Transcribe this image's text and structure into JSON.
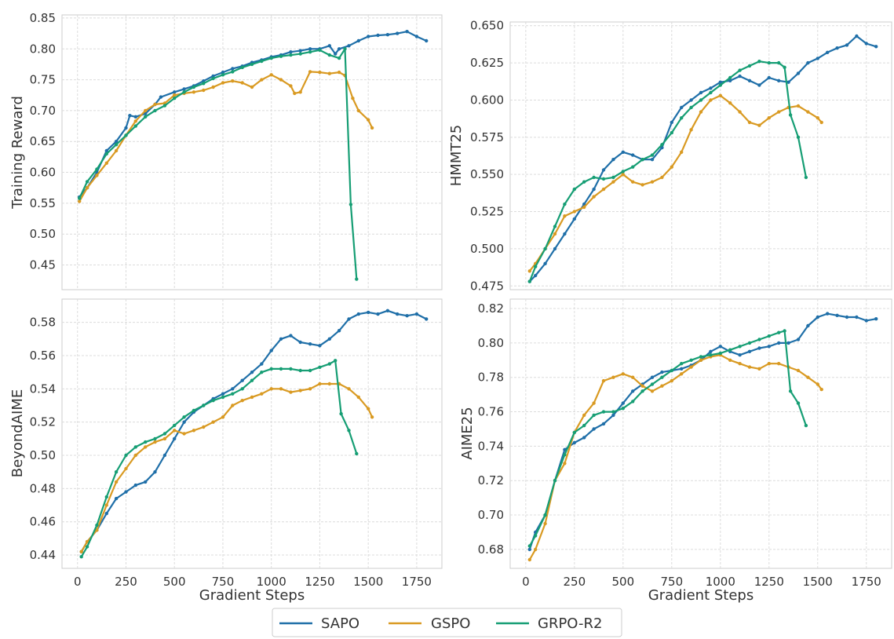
{
  "figure": {
    "legend": {
      "placement": "bottom-center",
      "entries": [
        {
          "name": "SAPO",
          "color": "#1f6fa8"
        },
        {
          "name": "GSPO",
          "color": "#d99a22"
        },
        {
          "name": "GRPO-R2",
          "color": "#169e74"
        }
      ]
    }
  },
  "chart_data": [
    {
      "type": "line",
      "id": "training-reward",
      "title": "",
      "xlabel": "",
      "ylabel": "Training Reward",
      "xlim": [
        -80,
        1880
      ],
      "ylim": [
        0.41,
        0.855
      ],
      "xticks": [
        0,
        250,
        500,
        750,
        1000,
        1250,
        1500,
        1750
      ],
      "yticks": [
        0.45,
        0.5,
        0.55,
        0.6,
        0.65,
        0.7,
        0.75,
        0.8,
        0.85
      ],
      "ytick_labels": [
        "0.45",
        "0.50",
        "0.55",
        "0.60",
        "0.65",
        "0.70",
        "0.75",
        "0.80",
        "0.85"
      ],
      "grid": true,
      "series": [
        {
          "name": "SAPO",
          "color": "#1f6fa8",
          "x": [
            10,
            50,
            100,
            150,
            200,
            250,
            270,
            300,
            350,
            400,
            430,
            500,
            550,
            600,
            650,
            700,
            750,
            800,
            850,
            900,
            950,
            1000,
            1050,
            1100,
            1150,
            1200,
            1250,
            1300,
            1330,
            1350,
            1400,
            1450,
            1500,
            1550,
            1600,
            1650,
            1700,
            1750,
            1800
          ],
          "y": [
            0.56,
            0.575,
            0.6,
            0.635,
            0.65,
            0.672,
            0.692,
            0.69,
            0.695,
            0.71,
            0.722,
            0.73,
            0.735,
            0.74,
            0.748,
            0.756,
            0.762,
            0.768,
            0.772,
            0.778,
            0.782,
            0.787,
            0.79,
            0.795,
            0.797,
            0.8,
            0.8,
            0.805,
            0.792,
            0.8,
            0.805,
            0.813,
            0.82,
            0.822,
            0.823,
            0.825,
            0.828,
            0.82,
            0.813
          ]
        },
        {
          "name": "GSPO",
          "color": "#d99a22",
          "x": [
            10,
            50,
            100,
            150,
            200,
            250,
            300,
            350,
            400,
            450,
            500,
            550,
            600,
            650,
            700,
            750,
            800,
            850,
            900,
            950,
            1000,
            1050,
            1100,
            1120,
            1150,
            1200,
            1250,
            1300,
            1350,
            1380,
            1420,
            1450,
            1500,
            1520
          ],
          "y": [
            0.553,
            0.575,
            0.595,
            0.615,
            0.635,
            0.66,
            0.683,
            0.7,
            0.71,
            0.712,
            0.725,
            0.728,
            0.73,
            0.733,
            0.738,
            0.745,
            0.748,
            0.745,
            0.738,
            0.75,
            0.758,
            0.75,
            0.74,
            0.728,
            0.73,
            0.763,
            0.762,
            0.76,
            0.762,
            0.757,
            0.72,
            0.7,
            0.685,
            0.672
          ]
        },
        {
          "name": "GRPO-R2",
          "color": "#169e74",
          "x": [
            10,
            50,
            100,
            150,
            200,
            250,
            300,
            350,
            400,
            450,
            500,
            550,
            600,
            650,
            700,
            750,
            800,
            850,
            900,
            950,
            1000,
            1050,
            1100,
            1150,
            1200,
            1250,
            1300,
            1350,
            1380,
            1410,
            1440
          ],
          "y": [
            0.558,
            0.585,
            0.605,
            0.63,
            0.645,
            0.66,
            0.675,
            0.69,
            0.7,
            0.708,
            0.72,
            0.73,
            0.738,
            0.744,
            0.752,
            0.758,
            0.763,
            0.77,
            0.775,
            0.78,
            0.785,
            0.788,
            0.79,
            0.792,
            0.795,
            0.798,
            0.79,
            0.785,
            0.8,
            0.548,
            0.427
          ]
        }
      ]
    },
    {
      "type": "line",
      "id": "hmmt25",
      "title": "",
      "xlabel": "",
      "ylabel": "HMMT25",
      "xlim": [
        -80,
        1880
      ],
      "ylim": [
        0.4725,
        0.6525
      ],
      "xticks": [
        0,
        250,
        500,
        750,
        1000,
        1250,
        1500,
        1750
      ],
      "yticks": [
        0.475,
        0.5,
        0.525,
        0.55,
        0.575,
        0.6,
        0.625,
        0.65
      ],
      "ytick_labels": [
        "0.475",
        "0.500",
        "0.525",
        "0.550",
        "0.575",
        "0.600",
        "0.625",
        "0.650"
      ],
      "grid": true,
      "series": [
        {
          "name": "SAPO",
          "color": "#1f6fa8",
          "x": [
            20,
            50,
            100,
            150,
            200,
            250,
            300,
            350,
            400,
            450,
            500,
            550,
            600,
            650,
            700,
            750,
            800,
            850,
            900,
            950,
            1000,
            1050,
            1100,
            1150,
            1200,
            1250,
            1300,
            1350,
            1400,
            1450,
            1500,
            1550,
            1600,
            1650,
            1700,
            1750,
            1800
          ],
          "y": [
            0.478,
            0.482,
            0.49,
            0.5,
            0.51,
            0.52,
            0.53,
            0.54,
            0.553,
            0.56,
            0.565,
            0.563,
            0.56,
            0.56,
            0.568,
            0.585,
            0.595,
            0.6,
            0.605,
            0.608,
            0.612,
            0.613,
            0.616,
            0.613,
            0.61,
            0.615,
            0.613,
            0.612,
            0.618,
            0.625,
            0.628,
            0.632,
            0.635,
            0.637,
            0.643,
            0.638,
            0.636
          ]
        },
        {
          "name": "GSPO",
          "color": "#d99a22",
          "x": [
            20,
            50,
            100,
            150,
            200,
            250,
            300,
            350,
            400,
            450,
            500,
            550,
            600,
            650,
            700,
            750,
            800,
            850,
            900,
            950,
            1000,
            1050,
            1100,
            1150,
            1200,
            1250,
            1300,
            1350,
            1400,
            1450,
            1500,
            1520
          ],
          "y": [
            0.485,
            0.49,
            0.5,
            0.51,
            0.522,
            0.525,
            0.528,
            0.535,
            0.54,
            0.545,
            0.55,
            0.545,
            0.543,
            0.545,
            0.548,
            0.555,
            0.565,
            0.58,
            0.592,
            0.6,
            0.603,
            0.598,
            0.592,
            0.585,
            0.583,
            0.588,
            0.592,
            0.595,
            0.596,
            0.592,
            0.588,
            0.585
          ]
        },
        {
          "name": "GRPO-R2",
          "color": "#169e74",
          "x": [
            20,
            50,
            100,
            150,
            200,
            250,
            300,
            350,
            400,
            450,
            500,
            550,
            600,
            650,
            700,
            750,
            800,
            850,
            900,
            950,
            1000,
            1050,
            1100,
            1150,
            1200,
            1250,
            1300,
            1330,
            1360,
            1400,
            1440
          ],
          "y": [
            0.478,
            0.488,
            0.5,
            0.515,
            0.53,
            0.54,
            0.545,
            0.548,
            0.547,
            0.548,
            0.552,
            0.555,
            0.56,
            0.563,
            0.57,
            0.578,
            0.588,
            0.595,
            0.6,
            0.605,
            0.61,
            0.615,
            0.62,
            0.623,
            0.626,
            0.625,
            0.625,
            0.622,
            0.59,
            0.575,
            0.548
          ]
        }
      ]
    },
    {
      "type": "line",
      "id": "beyondaime",
      "title": "",
      "xlabel": "Gradient Steps",
      "ylabel": "BeyondAIME",
      "xlim": [
        -80,
        1880
      ],
      "ylim": [
        0.432,
        0.594
      ],
      "xticks": [
        0,
        250,
        500,
        750,
        1000,
        1250,
        1500,
        1750
      ],
      "yticks": [
        0.44,
        0.46,
        0.48,
        0.5,
        0.52,
        0.54,
        0.56,
        0.58
      ],
      "ytick_labels": [
        "0.44",
        "0.46",
        "0.48",
        "0.50",
        "0.52",
        "0.54",
        "0.56",
        "0.58"
      ],
      "grid": true,
      "series": [
        {
          "name": "SAPO",
          "color": "#1f6fa8",
          "x": [
            20,
            50,
            100,
            150,
            200,
            250,
            300,
            350,
            400,
            450,
            500,
            550,
            600,
            650,
            700,
            750,
            800,
            850,
            900,
            950,
            1000,
            1050,
            1100,
            1150,
            1200,
            1250,
            1300,
            1350,
            1400,
            1450,
            1500,
            1550,
            1600,
            1650,
            1700,
            1750,
            1800
          ],
          "y": [
            0.442,
            0.448,
            0.455,
            0.465,
            0.474,
            0.478,
            0.482,
            0.484,
            0.49,
            0.5,
            0.51,
            0.52,
            0.526,
            0.53,
            0.534,
            0.537,
            0.54,
            0.545,
            0.55,
            0.555,
            0.563,
            0.57,
            0.572,
            0.568,
            0.567,
            0.566,
            0.57,
            0.575,
            0.582,
            0.585,
            0.586,
            0.585,
            0.587,
            0.585,
            0.584,
            0.585,
            0.582
          ]
        },
        {
          "name": "GSPO",
          "color": "#d99a22",
          "x": [
            20,
            50,
            100,
            150,
            200,
            250,
            300,
            350,
            400,
            450,
            500,
            550,
            600,
            650,
            700,
            750,
            800,
            850,
            900,
            950,
            1000,
            1050,
            1100,
            1150,
            1200,
            1250,
            1300,
            1350,
            1400,
            1450,
            1500,
            1520
          ],
          "y": [
            0.442,
            0.448,
            0.455,
            0.47,
            0.484,
            0.492,
            0.5,
            0.505,
            0.508,
            0.51,
            0.515,
            0.513,
            0.515,
            0.517,
            0.52,
            0.523,
            0.53,
            0.533,
            0.535,
            0.537,
            0.54,
            0.54,
            0.538,
            0.539,
            0.54,
            0.543,
            0.543,
            0.543,
            0.54,
            0.535,
            0.528,
            0.523
          ]
        },
        {
          "name": "GRPO-R2",
          "color": "#169e74",
          "x": [
            20,
            50,
            100,
            150,
            200,
            250,
            300,
            350,
            400,
            450,
            500,
            550,
            600,
            650,
            700,
            750,
            800,
            850,
            900,
            950,
            1000,
            1050,
            1100,
            1150,
            1200,
            1250,
            1300,
            1330,
            1360,
            1400,
            1440
          ],
          "y": [
            0.439,
            0.445,
            0.458,
            0.475,
            0.49,
            0.5,
            0.505,
            0.508,
            0.51,
            0.513,
            0.518,
            0.523,
            0.527,
            0.53,
            0.533,
            0.535,
            0.537,
            0.54,
            0.545,
            0.55,
            0.552,
            0.552,
            0.552,
            0.551,
            0.551,
            0.553,
            0.555,
            0.557,
            0.525,
            0.515,
            0.501
          ]
        }
      ]
    },
    {
      "type": "line",
      "id": "aime25",
      "title": "",
      "xlabel": "Gradient Steps",
      "ylabel": "AIME25",
      "xlim": [
        -80,
        1880
      ],
      "ylim": [
        0.669,
        0.8255
      ],
      "xticks": [
        0,
        250,
        500,
        750,
        1000,
        1250,
        1500,
        1750
      ],
      "yticks": [
        0.68,
        0.7,
        0.72,
        0.74,
        0.76,
        0.78,
        0.8,
        0.82
      ],
      "ytick_labels": [
        "0.68",
        "0.70",
        "0.72",
        "0.74",
        "0.76",
        "0.78",
        "0.80",
        "0.82"
      ],
      "grid": true,
      "series": [
        {
          "name": "SAPO",
          "color": "#1f6fa8",
          "x": [
            20,
            50,
            100,
            150,
            200,
            250,
            300,
            350,
            400,
            450,
            500,
            550,
            600,
            650,
            700,
            750,
            800,
            850,
            900,
            950,
            1000,
            1050,
            1100,
            1150,
            1200,
            1250,
            1300,
            1350,
            1400,
            1450,
            1500,
            1550,
            1600,
            1650,
            1700,
            1750,
            1800
          ],
          "y": [
            0.68,
            0.69,
            0.7,
            0.72,
            0.738,
            0.742,
            0.745,
            0.75,
            0.753,
            0.758,
            0.765,
            0.772,
            0.776,
            0.78,
            0.783,
            0.784,
            0.785,
            0.787,
            0.79,
            0.795,
            0.798,
            0.795,
            0.793,
            0.795,
            0.797,
            0.798,
            0.8,
            0.8,
            0.802,
            0.81,
            0.815,
            0.817,
            0.816,
            0.815,
            0.815,
            0.813,
            0.814
          ]
        },
        {
          "name": "GSPO",
          "color": "#d99a22",
          "x": [
            20,
            50,
            100,
            150,
            200,
            250,
            300,
            350,
            400,
            450,
            500,
            550,
            600,
            650,
            700,
            750,
            800,
            850,
            900,
            950,
            1000,
            1050,
            1100,
            1150,
            1200,
            1250,
            1300,
            1350,
            1400,
            1450,
            1500,
            1520
          ],
          "y": [
            0.674,
            0.68,
            0.695,
            0.72,
            0.73,
            0.748,
            0.758,
            0.765,
            0.778,
            0.78,
            0.782,
            0.78,
            0.775,
            0.772,
            0.775,
            0.778,
            0.782,
            0.786,
            0.79,
            0.792,
            0.793,
            0.79,
            0.788,
            0.786,
            0.785,
            0.788,
            0.788,
            0.786,
            0.784,
            0.78,
            0.776,
            0.773
          ]
        },
        {
          "name": "GRPO-R2",
          "color": "#169e74",
          "x": [
            20,
            50,
            100,
            150,
            200,
            250,
            300,
            350,
            400,
            450,
            500,
            550,
            600,
            650,
            700,
            750,
            800,
            850,
            900,
            950,
            1000,
            1050,
            1100,
            1150,
            1200,
            1250,
            1300,
            1330,
            1360,
            1400,
            1440
          ],
          "y": [
            0.682,
            0.688,
            0.7,
            0.72,
            0.735,
            0.748,
            0.752,
            0.758,
            0.76,
            0.76,
            0.762,
            0.766,
            0.772,
            0.776,
            0.78,
            0.784,
            0.788,
            0.79,
            0.792,
            0.793,
            0.794,
            0.796,
            0.798,
            0.8,
            0.802,
            0.804,
            0.806,
            0.807,
            0.772,
            0.765,
            0.752
          ]
        }
      ]
    }
  ]
}
